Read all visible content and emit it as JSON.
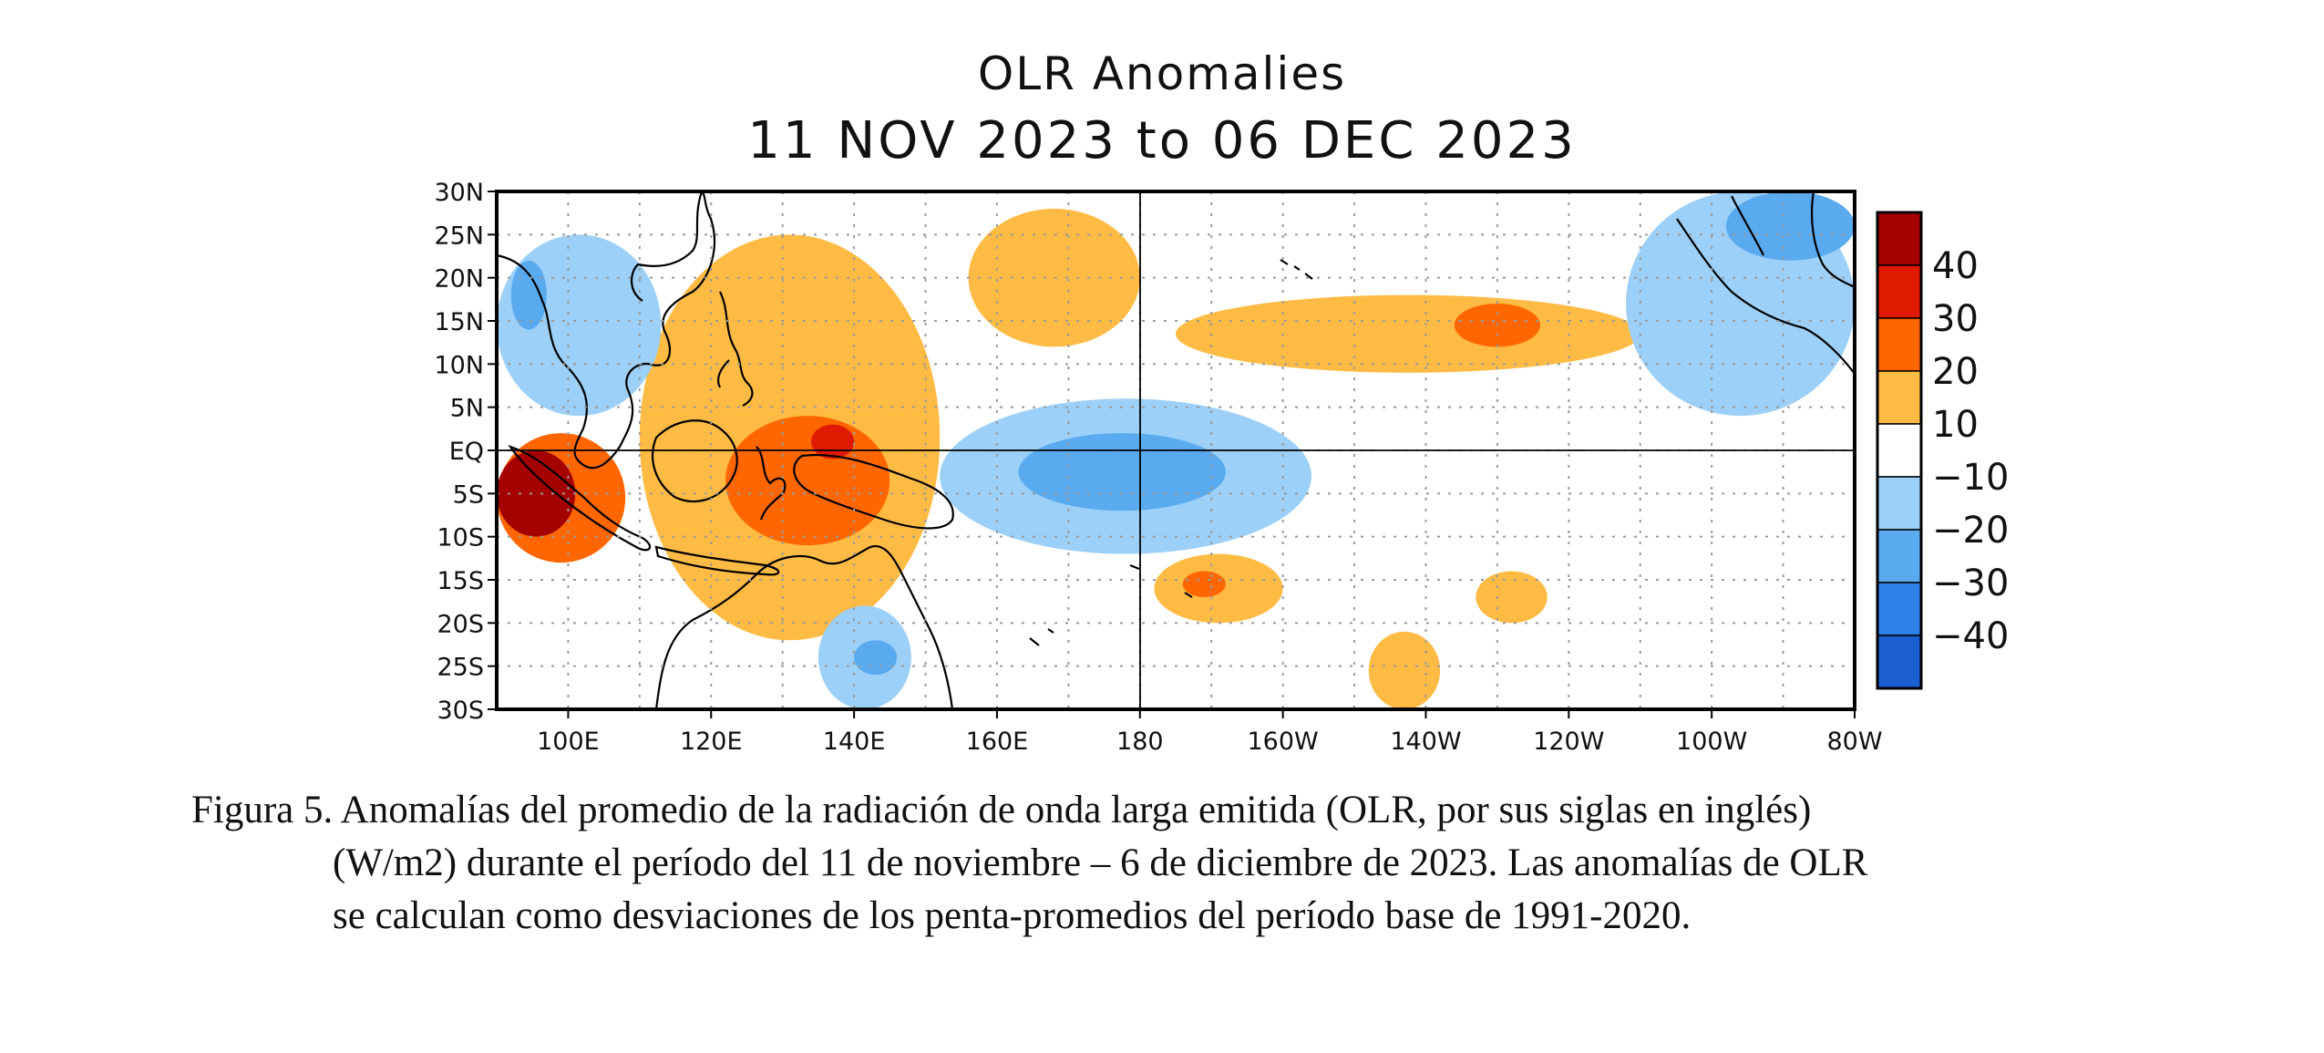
{
  "chart_data": {
    "type": "heatmap",
    "title": "OLR Anomalies",
    "subtitle": "11 NOV 2023 to 06 DEC 2023",
    "x_ticks": [
      "100E",
      "120E",
      "140E",
      "160E",
      "180",
      "160W",
      "140W",
      "120W",
      "100W",
      "80W"
    ],
    "x_tick_lon": [
      100,
      120,
      140,
      160,
      180,
      200,
      220,
      240,
      260,
      280
    ],
    "y_ticks": [
      "30N",
      "25N",
      "20N",
      "15N",
      "10N",
      "5N",
      "EQ",
      "5S",
      "10S",
      "15S",
      "20S",
      "25S",
      "30S"
    ],
    "y_tick_lat": [
      30,
      25,
      20,
      15,
      10,
      5,
      0,
      -5,
      -10,
      -15,
      -20,
      -25,
      -30
    ],
    "xlim": [
      90,
      280
    ],
    "ylim": [
      -30,
      30
    ],
    "grid": true,
    "colorbar": {
      "labels": [
        "40",
        "30",
        "20",
        "10",
        "−10",
        "−20",
        "−30",
        "−40"
      ],
      "colors": [
        "#a50000",
        "#e01a00",
        "#ff6600",
        "#ffbb44",
        "#ffffff",
        "#9cd0f8",
        "#5aaaf0",
        "#2c80e8",
        "#1a5ed0"
      ]
    },
    "anomaly_regions": [
      {
        "level": 10,
        "lon": [
          110,
          152
        ],
        "lat": [
          -22,
          25
        ]
      },
      {
        "level": 20,
        "lon": [
          90,
          108
        ],
        "lat": [
          -13,
          2
        ]
      },
      {
        "level": 40,
        "lon": [
          90,
          101
        ],
        "lat": [
          -10,
          0
        ]
      },
      {
        "level": 20,
        "lon": [
          122,
          145
        ],
        "lat": [
          -11,
          4
        ]
      },
      {
        "level": 30,
        "lon": [
          134,
          140
        ],
        "lat": [
          -1,
          3
        ]
      },
      {
        "level": 10,
        "lon": [
          156,
          180
        ],
        "lat": [
          12,
          28
        ]
      },
      {
        "level": 10,
        "lon": [
          185,
          250
        ],
        "lat": [
          9,
          18
        ]
      },
      {
        "level": 20,
        "lon": [
          224,
          236
        ],
        "lat": [
          12,
          17
        ]
      },
      {
        "level": 10,
        "lon": [
          182,
          200
        ],
        "lat": [
          -20,
          -12
        ]
      },
      {
        "level": 20,
        "lon": [
          186,
          192
        ],
        "lat": [
          -17,
          -14
        ]
      },
      {
        "level": 10,
        "lon": [
          212,
          222
        ],
        "lat": [
          -30,
          -21
        ]
      },
      {
        "level": 10,
        "lon": [
          227,
          237
        ],
        "lat": [
          -20,
          -14
        ]
      },
      {
        "level": -10,
        "lon": [
          152,
          204
        ],
        "lat": [
          -12,
          6
        ]
      },
      {
        "level": -20,
        "lon": [
          163,
          192
        ],
        "lat": [
          -7,
          2
        ]
      },
      {
        "level": -10,
        "lon": [
          90,
          113
        ],
        "lat": [
          4,
          25
        ]
      },
      {
        "level": -20,
        "lon": [
          92,
          97
        ],
        "lat": [
          14,
          22
        ]
      },
      {
        "level": -10,
        "lon": [
          248,
          280
        ],
        "lat": [
          4,
          30
        ]
      },
      {
        "level": -20,
        "lon": [
          262,
          280
        ],
        "lat": [
          22,
          30
        ]
      },
      {
        "level": -10,
        "lon": [
          135,
          148
        ],
        "lat": [
          -30,
          -18
        ]
      },
      {
        "level": -20,
        "lon": [
          140,
          146
        ],
        "lat": [
          -26,
          -22
        ]
      }
    ]
  },
  "caption": {
    "line1": "Figura 5. Anomalías del promedio de la radiación de onda larga emitida (OLR, por sus siglas en inglés)",
    "line2": "(W/m2) durante el período del 11 de noviembre – 6 de diciembre de 2023.  Las anomalías de OLR",
    "line3": "se calculan como desviaciones de los penta-promedios del período base de 1991-2020."
  }
}
